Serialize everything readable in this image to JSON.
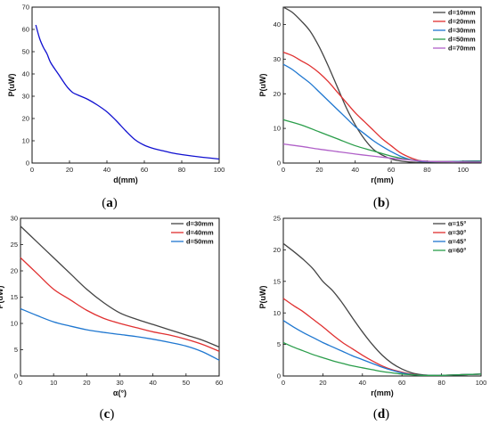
{
  "chart_data": [
    {
      "type": "line",
      "caption_open": "(",
      "caption_letter": "a",
      "caption_close": ")",
      "xlabel": "d(mm)",
      "ylabel": "P(uW)",
      "xlim": [
        0,
        100
      ],
      "ylim": [
        0,
        70
      ],
      "xticks": [
        0,
        20,
        40,
        60,
        80,
        100
      ],
      "yticks": [
        0,
        10,
        20,
        30,
        40,
        50,
        60,
        70
      ],
      "legend": "none",
      "series": [
        {
          "color": "#1010d0",
          "x": [
            2,
            4,
            6,
            8,
            10,
            14,
            18,
            20,
            22,
            26,
            30,
            35,
            40,
            45,
            50,
            55,
            60,
            65,
            70,
            75,
            80,
            90,
            100
          ],
          "y": [
            62,
            56,
            52,
            49,
            45,
            40,
            35,
            33,
            31.5,
            30,
            28.5,
            26,
            23,
            19,
            14.5,
            10.5,
            8,
            6.5,
            5.5,
            4.5,
            3.8,
            2.7,
            1.8
          ]
        }
      ]
    },
    {
      "type": "line",
      "caption_open": "(",
      "caption_letter": "b",
      "caption_close": ")",
      "xlabel": "r(mm)",
      "ylabel": "P(uW)",
      "xlim": [
        0,
        110
      ],
      "ylim": [
        0,
        45
      ],
      "xticks": [
        0,
        20,
        40,
        60,
        80,
        100
      ],
      "yticks": [
        0,
        10,
        20,
        30,
        40
      ],
      "legend": "top-right",
      "series": [
        {
          "name": "d=10mm",
          "color": "#444444",
          "x": [
            0,
            5,
            10,
            15,
            20,
            25,
            30,
            35,
            40,
            45,
            50,
            55,
            60,
            65,
            70,
            75,
            80,
            90,
            100,
            110
          ],
          "y": [
            45,
            43.5,
            41,
            38,
            33.5,
            28,
            22,
            16,
            11,
            7,
            4,
            2.3,
            1.2,
            0.6,
            0.3,
            0.2,
            0.3,
            0.4,
            0.5,
            0.6
          ]
        },
        {
          "name": "d=20mm",
          "color": "#e03030",
          "x": [
            0,
            5,
            10,
            15,
            20,
            25,
            30,
            35,
            40,
            45,
            50,
            55,
            60,
            65,
            70,
            75,
            80,
            90,
            100,
            110
          ],
          "y": [
            32,
            31,
            29.5,
            28,
            26,
            23.5,
            20.5,
            17.5,
            14.5,
            12,
            9.5,
            7,
            5,
            3,
            1.7,
            0.8,
            0.5,
            0.4,
            0.5,
            0.6
          ]
        },
        {
          "name": "d=30mm",
          "color": "#1f77d0",
          "x": [
            0,
            5,
            10,
            15,
            20,
            25,
            30,
            35,
            40,
            45,
            50,
            55,
            60,
            65,
            70,
            75,
            80,
            90,
            100,
            110
          ],
          "y": [
            28.5,
            27,
            25,
            23,
            20.5,
            18,
            15.5,
            13,
            10.5,
            8.5,
            6.5,
            4.8,
            3.3,
            2,
            1.1,
            0.6,
            0.4,
            0.4,
            0.5,
            0.6
          ]
        },
        {
          "name": "d=50mm",
          "color": "#2a9d4a",
          "x": [
            0,
            10,
            20,
            30,
            40,
            50,
            60,
            70,
            80,
            90,
            100,
            110
          ],
          "y": [
            12.5,
            11,
            9,
            7,
            5,
            3.5,
            2,
            1,
            0.5,
            0.4,
            0.4,
            0.5
          ]
        },
        {
          "name": "d=70mm",
          "color": "#b060c8",
          "x": [
            0,
            10,
            20,
            30,
            40,
            50,
            60,
            70,
            80,
            90,
            100,
            110
          ],
          "y": [
            5.5,
            4.8,
            4,
            3.3,
            2.6,
            2,
            1.4,
            0.9,
            0.5,
            0.4,
            0.3,
            0.3
          ]
        }
      ]
    },
    {
      "type": "line",
      "caption_open": "(",
      "caption_letter": "c",
      "caption_close": ")",
      "xlabel": "α(°)",
      "ylabel": "P(uW)",
      "xlim": [
        0,
        60
      ],
      "ylim": [
        0,
        30
      ],
      "xticks": [
        0,
        10,
        20,
        30,
        40,
        50,
        60
      ],
      "yticks": [
        0,
        5,
        10,
        15,
        20,
        25,
        30
      ],
      "legend": "top-right",
      "series": [
        {
          "name": "d=30mm",
          "color": "#444444",
          "x": [
            0,
            5,
            10,
            15,
            20,
            25,
            30,
            35,
            40,
            45,
            50,
            55,
            60
          ],
          "y": [
            28.5,
            25.5,
            22.5,
            19.5,
            16.5,
            14,
            12,
            10.8,
            9.8,
            8.8,
            7.8,
            6.8,
            5.5
          ]
        },
        {
          "name": "d=40mm",
          "color": "#e03030",
          "x": [
            0,
            5,
            10,
            15,
            20,
            25,
            30,
            35,
            40,
            45,
            50,
            55,
            60
          ],
          "y": [
            22.5,
            19.5,
            16.5,
            14.5,
            12.5,
            11,
            10,
            9.2,
            8.4,
            7.8,
            7,
            6,
            4.7
          ]
        },
        {
          "name": "d=50mm",
          "color": "#1f77d0",
          "x": [
            0,
            5,
            10,
            15,
            20,
            25,
            30,
            35,
            40,
            45,
            50,
            55,
            60
          ],
          "y": [
            12.8,
            11.5,
            10.3,
            9.5,
            8.8,
            8.3,
            7.9,
            7.5,
            7,
            6.4,
            5.7,
            4.6,
            3
          ]
        }
      ]
    },
    {
      "type": "line",
      "caption_open": "(",
      "caption_letter": "d",
      "caption_close": ")",
      "xlabel": "r(mm)",
      "ylabel": "P(uW)",
      "xlim": [
        0,
        100
      ],
      "ylim": [
        0,
        25
      ],
      "xticks": [
        0,
        20,
        40,
        60,
        80,
        100
      ],
      "yticks": [
        0,
        5,
        10,
        15,
        20,
        25
      ],
      "legend": "top-right",
      "series": [
        {
          "name": "α=15°",
          "color": "#444444",
          "x": [
            0,
            5,
            10,
            15,
            20,
            25,
            30,
            35,
            40,
            45,
            50,
            55,
            60,
            65,
            70,
            75,
            80,
            90,
            100
          ],
          "y": [
            21,
            19.8,
            18.5,
            17,
            15,
            13.5,
            11.5,
            9.2,
            7,
            5,
            3.3,
            2,
            1.1,
            0.5,
            0.2,
            0.1,
            0.1,
            0.2,
            0.3
          ]
        },
        {
          "name": "α=30°",
          "color": "#e03030",
          "x": [
            0,
            5,
            10,
            15,
            20,
            25,
            30,
            35,
            40,
            45,
            50,
            55,
            60,
            65,
            70,
            75,
            80,
            90,
            100
          ],
          "y": [
            12.3,
            11.2,
            10.2,
            9,
            7.8,
            6.5,
            5.3,
            4.3,
            3.3,
            2.4,
            1.6,
            1,
            0.6,
            0.3,
            0.1,
            0.1,
            0.1,
            0.2,
            0.3
          ]
        },
        {
          "name": "α=45°",
          "color": "#1f77d0",
          "x": [
            0,
            5,
            10,
            15,
            20,
            25,
            30,
            35,
            40,
            45,
            50,
            55,
            60,
            65,
            70,
            75,
            80,
            90,
            100
          ],
          "y": [
            8.8,
            7.8,
            6.9,
            6.1,
            5.3,
            4.6,
            3.9,
            3.2,
            2.6,
            2,
            1.4,
            0.9,
            0.5,
            0.25,
            0.1,
            0.1,
            0.1,
            0.2,
            0.3
          ]
        },
        {
          "name": "α=60°",
          "color": "#2a9d4a",
          "x": [
            0,
            5,
            10,
            15,
            20,
            25,
            30,
            35,
            40,
            45,
            50,
            55,
            60,
            65,
            70,
            75,
            80,
            90,
            100
          ],
          "y": [
            5.3,
            4.6,
            4,
            3.4,
            2.9,
            2.4,
            2,
            1.6,
            1.3,
            1,
            0.7,
            0.5,
            0.3,
            0.2,
            0.1,
            0.1,
            0.1,
            0.2,
            0.3
          ]
        }
      ]
    }
  ]
}
